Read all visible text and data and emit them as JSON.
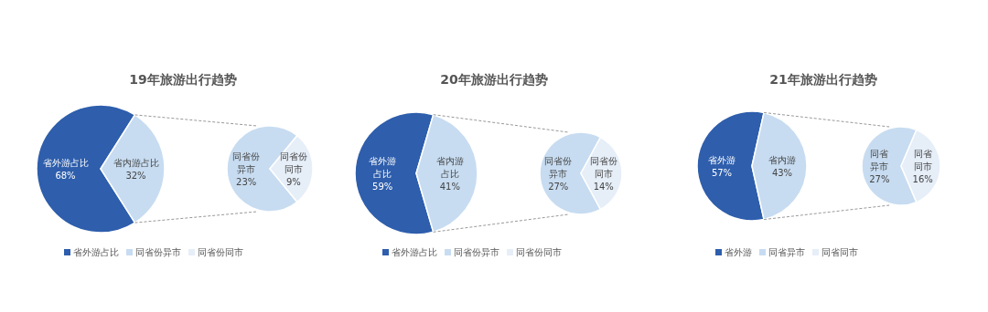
{
  "chart_data": [
    {
      "type": "pie",
      "title": "19年旅游出行趋势",
      "categories": [
        "省外游占比",
        "省内游占比"
      ],
      "values": [
        68,
        32
      ],
      "value_labels": [
        "68%",
        "32%"
      ],
      "colors": [
        "#2e5eac",
        "#c7dcf1"
      ],
      "legend": "bottom"
    },
    {
      "type": "pie",
      "categories": [
        "同省份异市",
        "同省份同市"
      ],
      "values": [
        23,
        9
      ],
      "value_labels": [
        "23%",
        "9%"
      ],
      "colors": [
        "#c7dcf1",
        "#e6eef8"
      ]
    },
    {
      "type": "pie",
      "title": "20年旅游出行趋势",
      "categories": [
        "省外游占比",
        "省内游占比"
      ],
      "values": [
        59,
        41
      ],
      "value_labels": [
        "59%",
        "41%"
      ],
      "colors": [
        "#2e5eac",
        "#c7dcf1"
      ],
      "legend": "bottom"
    },
    {
      "type": "pie",
      "categories": [
        "同省份异市",
        "同省份同市"
      ],
      "values": [
        27,
        14
      ],
      "value_labels": [
        "27%",
        "14%"
      ],
      "colors": [
        "#c7dcf1",
        "#e6eef8"
      ]
    },
    {
      "type": "pie",
      "title": "21年旅游出行趋势",
      "categories": [
        "省外游",
        "省内游"
      ],
      "values": [
        57,
        43
      ],
      "value_labels": [
        "57%",
        "43%"
      ],
      "colors": [
        "#2e5eac",
        "#c7dcf1"
      ],
      "legend": "bottom"
    },
    {
      "type": "pie",
      "categories": [
        "同省异市",
        "同省同市"
      ],
      "values": [
        27,
        16
      ],
      "value_labels": [
        "27%",
        "16%"
      ],
      "colors": [
        "#c7dcf1",
        "#e6eef8"
      ]
    }
  ]
}
